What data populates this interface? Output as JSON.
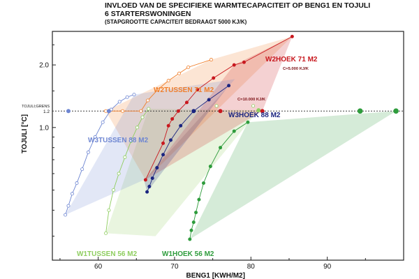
{
  "header": {
    "title": "INVLOED VAN DE SPECIFIEKE WARMTECAPACITEIT OP BENG1 EN TOJULI",
    "subtitle": "6 STARTERSWONINGEN",
    "note": "(STAPGROOTTE CAPACITEIT BEDRAAGT 5000 KJ/K)"
  },
  "chart_data": {
    "type": "scatter",
    "title": "INVLOED VAN DE SPECIFIEKE WARMTECAPACITEIT OP BENG1 EN TOJULI",
    "xlabel": "BENG1 [KWH/M2]",
    "ylabel": "TOJULI [°C]",
    "xlim": [
      54,
      100
    ],
    "ylim": [
      0.23,
      2.9
    ],
    "yscale": "log",
    "x_ticks": [
      60,
      70,
      80,
      90
    ],
    "y_ticks": [
      1.0,
      2.0
    ],
    "y_tick_labels": [
      "1.0",
      "2.0"
    ],
    "threshold": {
      "label": "TOJULI;GRENS",
      "value_label": "1.2",
      "value": 1.2
    },
    "annotations": [
      "C=5.000 KJ/K",
      "C=10.000 KJ/K"
    ],
    "grid": false,
    "series": [
      {
        "name": "W1TUSSEN 56 M2",
        "color": "#8fce60",
        "points": [
          [
            61.0,
            0.31
          ],
          [
            61.4,
            0.4
          ],
          [
            62.0,
            0.5
          ],
          [
            62.7,
            0.6
          ],
          [
            63.5,
            0.72
          ],
          [
            64.3,
            0.86
          ],
          [
            65.1,
            1.0
          ],
          [
            65.8,
            1.12
          ],
          [
            66.6,
            1.23
          ],
          [
            75.5,
            1.27
          ],
          [
            80.3,
            1.27
          ],
          [
            81.0,
            1.21
          ]
        ],
        "region": [
          [
            61.0,
            0.31
          ],
          [
            66.6,
            1.23
          ],
          [
            81.0,
            1.21
          ],
          [
            67.5,
            0.3
          ]
        ]
      },
      {
        "name": "W1HOEK 56 M2",
        "color": "#2e9c3c",
        "points": [
          [
            72.0,
            0.29
          ],
          [
            72.2,
            0.32
          ],
          [
            72.5,
            0.35
          ],
          [
            72.8,
            0.39
          ],
          [
            73.2,
            0.45
          ],
          [
            73.8,
            0.54
          ],
          [
            74.7,
            0.65
          ],
          [
            76.0,
            0.8
          ],
          [
            77.8,
            0.96
          ],
          [
            79.6,
            1.06
          ],
          [
            94.3,
            1.2
          ],
          [
            99.0,
            1.2
          ]
        ],
        "region": [
          [
            72.0,
            0.29
          ],
          [
            79.6,
            1.06
          ],
          [
            99.0,
            1.2
          ],
          [
            72.0,
            0.29
          ]
        ]
      },
      {
        "name": "W2TUSSEN 71 M2",
        "color": "#f07e2a",
        "points": [
          [
            61.0,
            1.2
          ],
          [
            63.2,
            1.2
          ],
          [
            65.6,
            1.2
          ],
          [
            66.5,
            1.35
          ],
          [
            67.8,
            1.52
          ],
          [
            69.2,
            1.68
          ],
          [
            70.6,
            1.82
          ],
          [
            71.8,
            1.95
          ],
          [
            74.8,
            2.12
          ]
        ],
        "region": [
          [
            61.0,
            1.2
          ],
          [
            74.8,
            2.12
          ],
          [
            85.4,
            2.74
          ],
          [
            66.2,
            0.56
          ]
        ]
      },
      {
        "name": "W2HOEK 71 M2",
        "color": "#c8181e",
        "points": [
          [
            66.2,
            0.56
          ],
          [
            68.5,
            0.84
          ],
          [
            69.2,
            1.02
          ],
          [
            69.7,
            1.1
          ],
          [
            70.5,
            1.2
          ],
          [
            71.6,
            1.32
          ],
          [
            73.0,
            1.52
          ],
          [
            75.1,
            1.73
          ],
          [
            77.8,
            2.0
          ],
          [
            79.1,
            2.06
          ],
          [
            85.4,
            2.74
          ],
          [
            76.0,
            1.2
          ],
          [
            81.5,
            1.2
          ]
        ],
        "region": [
          [
            66.2,
            0.56
          ],
          [
            81.5,
            1.2
          ],
          [
            85.4,
            2.74
          ],
          [
            77.8,
            2.0
          ]
        ]
      },
      {
        "name": "W3TUSSEN 88 M2",
        "color": "#6e86d2",
        "points": [
          [
            55.7,
            0.38
          ],
          [
            56.1,
            0.42
          ],
          [
            56.6,
            0.48
          ],
          [
            57.2,
            0.54
          ],
          [
            57.9,
            0.63
          ],
          [
            58.7,
            0.76
          ],
          [
            59.6,
            0.9
          ],
          [
            60.6,
            1.06
          ],
          [
            61.7,
            1.22
          ],
          [
            62.8,
            1.33
          ],
          [
            63.8,
            1.4
          ],
          [
            64.7,
            1.44
          ],
          [
            56.1,
            1.2
          ],
          [
            61.4,
            1.2
          ]
        ],
        "region": [
          [
            55.7,
            0.38
          ],
          [
            64.7,
            1.44
          ],
          [
            77.9,
            1.71
          ],
          [
            66.0,
            0.56
          ]
        ]
      },
      {
        "name": "W3HOEK 88 M2",
        "color": "#1b2580",
        "points": [
          [
            66.4,
            0.49
          ],
          [
            66.7,
            0.52
          ],
          [
            67.1,
            0.57
          ],
          [
            67.7,
            0.64
          ],
          [
            68.5,
            0.74
          ],
          [
            69.5,
            0.87
          ],
          [
            70.8,
            1.02
          ],
          [
            72.5,
            1.2
          ],
          [
            74.5,
            1.36
          ],
          [
            77.1,
            1.59
          ]
        ],
        "region": [
          [
            66.4,
            0.49
          ],
          [
            77.1,
            1.59
          ],
          [
            77.9,
            1.71
          ],
          [
            66.0,
            0.56
          ]
        ]
      }
    ]
  }
}
